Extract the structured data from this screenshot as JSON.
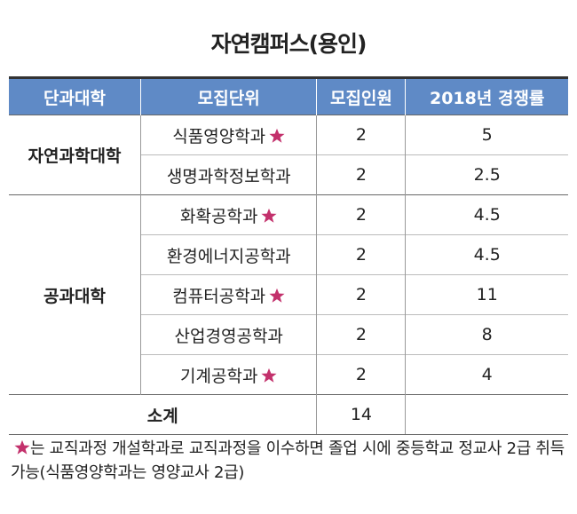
{
  "title": "자연캠퍼스(용인)",
  "table": {
    "header": [
      "단과대학",
      "모집단위",
      "모집인원",
      "2018년 경쟁률"
    ],
    "groups": [
      {
        "college": "자연과학대학",
        "rows": [
          {
            "department": "식품영양학과",
            "starred": true,
            "quota": 2,
            "competition": 5
          },
          {
            "department": "생명과학정보학과",
            "starred": false,
            "quota": 2,
            "competition": 2.5
          }
        ]
      },
      {
        "college": "공과대학",
        "rows": [
          {
            "department": "화확공학과",
            "starred": true,
            "quota": 2,
            "competition": 4.5
          },
          {
            "department": "환경에너지공학과",
            "starred": false,
            "quota": 2,
            "competition": 4.5
          },
          {
            "department": "컴퓨터공학과",
            "starred": true,
            "quota": 2,
            "competition": 11
          },
          {
            "department": "산업경영공학과",
            "starred": false,
            "quota": 2,
            "competition": 8
          },
          {
            "department": "기계공학과",
            "starred": true,
            "quota": 2,
            "competition": 4
          }
        ]
      }
    ],
    "subtotal": {
      "label": "소계",
      "quota": 14
    }
  },
  "footnote": "는 교직과정 개설학과로 교직과정을 이수하면 졸업 시에 중등학교 정교사 2급 취득 가능(식품영양학과는 영양교사 2급)"
}
